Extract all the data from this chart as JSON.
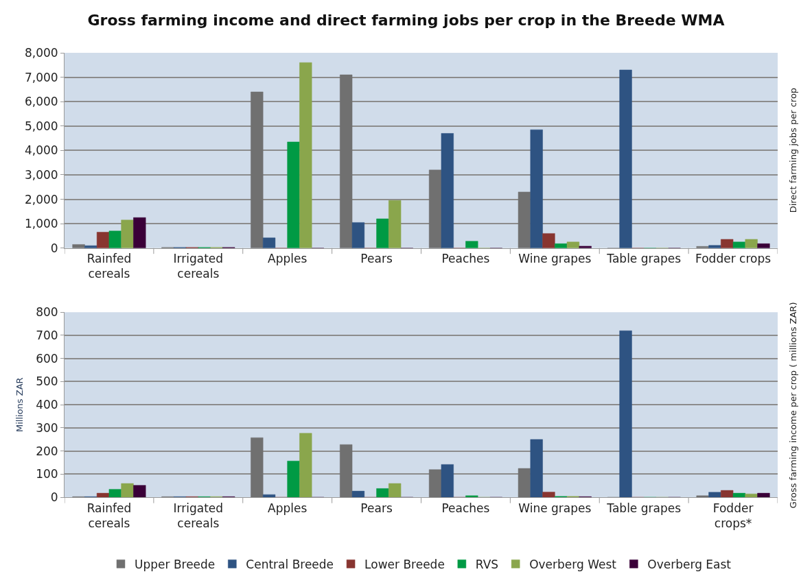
{
  "chart_data": [
    {
      "type": "bar",
      "title": "Gross farming income and direct farming jobs per crop in the Breede WMA",
      "y2label": "Direct farming jobs per crop",
      "categories": [
        "Rainfed cereals",
        "Irrigated cereals",
        "Apples",
        "Pears",
        "Peaches",
        "Wine grapes",
        "Table grapes",
        "Fodder crops"
      ],
      "series": [
        {
          "name": "Upper Breede",
          "color": "#707070",
          "values": [
            150,
            30,
            6400,
            7100,
            3200,
            2300,
            0,
            70
          ]
        },
        {
          "name": "Central Breede",
          "color": "#2e5382",
          "values": [
            100,
            30,
            420,
            1050,
            4700,
            4850,
            7300,
            110
          ]
        },
        {
          "name": "Lower Breede",
          "color": "#883530",
          "values": [
            650,
            30,
            0,
            0,
            0,
            600,
            0,
            360
          ]
        },
        {
          "name": "RVS",
          "color": "#009a44",
          "values": [
            700,
            30,
            4350,
            1200,
            280,
            180,
            0,
            250
          ]
        },
        {
          "name": "Overberg West",
          "color": "#8aa64c",
          "values": [
            1150,
            30,
            7600,
            1950,
            0,
            250,
            0,
            360
          ]
        },
        {
          "name": "Overberg East",
          "color": "#3a0038",
          "values": [
            1250,
            30,
            0,
            0,
            0,
            80,
            0,
            180
          ]
        }
      ],
      "ylim": [
        0,
        8000
      ],
      "yticks": [
        {
          "value": 0,
          "label": "0"
        },
        {
          "value": 1000,
          "label": "1,000"
        },
        {
          "value": 2000,
          "label": "2,000"
        },
        {
          "value": 3000,
          "label": "3,000"
        },
        {
          "value": 4000,
          "label": "4,000"
        },
        {
          "value": 5000,
          "label": "5,000"
        },
        {
          "value": 6000,
          "label": "6,000"
        },
        {
          "value": 7000,
          "label": "7,000"
        },
        {
          "value": 8000,
          "label": "8,000"
        }
      ],
      "grid": "y",
      "legend": "bottom"
    },
    {
      "type": "bar",
      "ylabel": "Millions ZAR",
      "y2label": "Gross farming income per crop ( millions ZAR)",
      "categories": [
        "Rainfed cereals",
        "Irrigated cereals",
        "Apples",
        "Pears",
        "Peaches",
        "Wine grapes",
        "Table grapes",
        "Fodder crops*"
      ],
      "series": [
        {
          "name": "Upper Breede",
          "color": "#707070",
          "values": [
            3,
            3,
            258,
            228,
            120,
            125,
            0,
            7
          ]
        },
        {
          "name": "Central Breede",
          "color": "#2e5382",
          "values": [
            3,
            3,
            12,
            27,
            142,
            250,
            720,
            22
          ]
        },
        {
          "name": "Lower Breede",
          "color": "#883530",
          "values": [
            18,
            3,
            0,
            0,
            0,
            23,
            0,
            30
          ]
        },
        {
          "name": "RVS",
          "color": "#009a44",
          "values": [
            35,
            3,
            157,
            38,
            7,
            4,
            0,
            18
          ]
        },
        {
          "name": "Overberg West",
          "color": "#8aa64c",
          "values": [
            60,
            3,
            277,
            60,
            0,
            4,
            0,
            15
          ]
        },
        {
          "name": "Overberg East",
          "color": "#3a0038",
          "values": [
            52,
            3,
            0,
            0,
            0,
            3,
            0,
            18
          ]
        }
      ],
      "ylim": [
        0,
        800
      ],
      "yticks": [
        0,
        100,
        200,
        300,
        400,
        500,
        600,
        700,
        800
      ],
      "grid": "y",
      "legend": "bottom"
    }
  ]
}
